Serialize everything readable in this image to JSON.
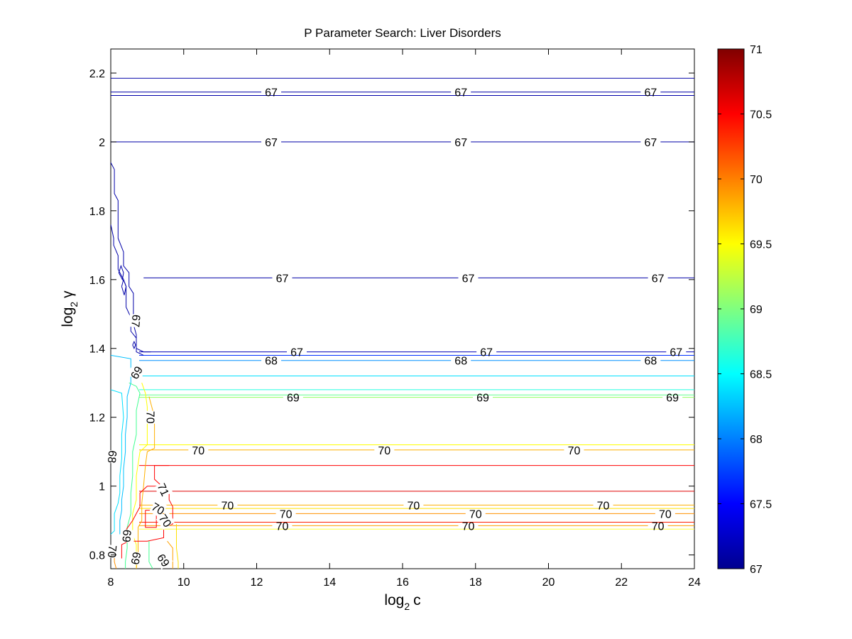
{
  "chart_data": {
    "type": "contour",
    "title": "P Parameter Search: Liver Disorders",
    "xlabel_base": "log",
    "xlabel_sub": "2",
    "xlabel_var": "c",
    "ylabel_base": "log",
    "ylabel_sub": "2",
    "ylabel_var": "γ",
    "xlim": [
      8,
      24
    ],
    "ylim": [
      0.76,
      2.27
    ],
    "xticks": [
      "8",
      "10",
      "12",
      "14",
      "16",
      "18",
      "20",
      "22",
      "24"
    ],
    "yticks": [
      "0.8",
      "1",
      "1.2",
      "1.4",
      "1.6",
      "1.8",
      "2",
      "2.2"
    ],
    "colorbar": {
      "range": [
        67,
        71
      ],
      "ticks": [
        "67",
        "67.5",
        "68",
        "68.5",
        "69",
        "69.5",
        "70",
        "70.5",
        "71"
      ]
    },
    "levels": [
      {
        "level": 67,
        "color": "#0000a8",
        "y": 2.185
      },
      {
        "level": 67,
        "color": "#0000a8",
        "y": 2.145,
        "labels": [
          {
            "x": 12.4,
            "text": "67"
          },
          {
            "x": 17.6,
            "text": "67"
          },
          {
            "x": 22.8,
            "text": "67"
          }
        ]
      },
      {
        "level": 67,
        "color": "#0000a8",
        "y": 2.135
      },
      {
        "level": 67,
        "color": "#0000a8",
        "y": 2.0,
        "labels": [
          {
            "x": 12.4,
            "text": "67"
          },
          {
            "x": 17.6,
            "text": "67"
          },
          {
            "x": 22.8,
            "text": "67"
          }
        ]
      },
      {
        "level": 67,
        "color": "#0000a8",
        "y": 1.605,
        "labels": [
          {
            "x": 12.7,
            "text": "67"
          },
          {
            "x": 17.8,
            "text": "67"
          },
          {
            "x": 23.0,
            "text": "67"
          }
        ]
      },
      {
        "level": 67,
        "color": "#0000b8",
        "y": 1.39,
        "labels": [
          {
            "x": 13.1,
            "text": "67"
          },
          {
            "x": 18.3,
            "text": "67"
          },
          {
            "x": 23.5,
            "text": "67"
          }
        ]
      },
      {
        "level": 67.5,
        "color": "#0030ff",
        "y": 1.38
      },
      {
        "level": 68,
        "color": "#0090ff",
        "y": 1.365,
        "labels": [
          {
            "x": 12.4,
            "text": "68"
          },
          {
            "x": 17.6,
            "text": "68"
          },
          {
            "x": 22.8,
            "text": "68"
          }
        ]
      },
      {
        "level": 68.5,
        "color": "#00e0ff",
        "y": 1.32
      },
      {
        "level": 68.5,
        "color": "#20ffe0",
        "y": 1.28
      },
      {
        "level": 69,
        "color": "#60ff90",
        "y": 1.265
      },
      {
        "level": 69,
        "color": "#90ff60",
        "y": 1.258,
        "labels": [
          {
            "x": 13.0,
            "text": "69"
          },
          {
            "x": 18.2,
            "text": "69"
          },
          {
            "x": 23.4,
            "text": "69"
          }
        ]
      },
      {
        "level": 69.5,
        "color": "#ffff00",
        "y": 1.12
      },
      {
        "level": 70,
        "color": "#ffb000",
        "y": 1.105,
        "labels": [
          {
            "x": 10.4,
            "text": "70"
          },
          {
            "x": 15.5,
            "text": "70"
          },
          {
            "x": 20.7,
            "text": "70"
          }
        ]
      },
      {
        "level": 70.5,
        "color": "#ff0000",
        "y": 1.06
      },
      {
        "level": 70.5,
        "color": "#e00000",
        "y": 0.985
      },
      {
        "level": 70,
        "color": "#ffb000",
        "y": 0.945,
        "labels": [
          {
            "x": 11.2,
            "text": "70"
          },
          {
            "x": 16.3,
            "text": "70"
          },
          {
            "x": 21.5,
            "text": "70"
          }
        ]
      },
      {
        "level": 69.5,
        "color": "#ffe000",
        "y": 0.935
      },
      {
        "level": 70,
        "color": "#ff9000",
        "y": 0.92,
        "labels": [
          {
            "x": 12.8,
            "text": "70"
          },
          {
            "x": 18.0,
            "text": "70"
          },
          {
            "x": 23.2,
            "text": "70"
          }
        ]
      },
      {
        "level": 70.5,
        "color": "#ff2000",
        "y": 0.895
      },
      {
        "level": 70,
        "color": "#ffa000",
        "y": 0.885,
        "labels": [
          {
            "x": 12.7,
            "text": "70"
          },
          {
            "x": 17.8,
            "text": "70"
          },
          {
            "x": 23.0,
            "text": "70"
          }
        ]
      },
      {
        "level": 69.5,
        "color": "#ffff40",
        "y": 0.875
      }
    ],
    "edge_labels": [
      {
        "x": 8.7,
        "y": 1.48,
        "text": "67",
        "rotate": 95
      },
      {
        "x": 8.7,
        "y": 1.33,
        "text": "69",
        "rotate": -60
      },
      {
        "x": 9.1,
        "y": 1.2,
        "text": "70",
        "rotate": 90
      },
      {
        "x": 8.05,
        "y": 1.085,
        "text": "68",
        "rotate": 95
      },
      {
        "x": 9.45,
        "y": 0.99,
        "text": "71",
        "rotate": 65
      },
      {
        "x": 9.3,
        "y": 0.935,
        "text": "70",
        "rotate": 30
      },
      {
        "x": 9.5,
        "y": 0.9,
        "text": "70",
        "rotate": 55
      },
      {
        "x": 8.45,
        "y": 0.855,
        "text": "69",
        "rotate": 95
      },
      {
        "x": 8.05,
        "y": 0.81,
        "text": "70",
        "rotate": 95
      },
      {
        "x": 8.7,
        "y": 0.79,
        "text": "69",
        "rotate": 100
      },
      {
        "x": 9.45,
        "y": 0.785,
        "text": "69",
        "rotate": 55
      }
    ],
    "edge_paths": [
      {
        "color": "#0000a8",
        "points": [
          [
            8.0,
            1.94
          ],
          [
            8.1,
            1.92
          ],
          [
            8.1,
            1.85
          ],
          [
            8.2,
            1.83
          ],
          [
            8.2,
            1.72
          ],
          [
            8.35,
            1.68
          ],
          [
            8.35,
            1.64
          ],
          [
            8.5,
            1.62
          ],
          [
            8.5,
            1.58
          ],
          [
            8.62,
            1.56
          ],
          [
            8.62,
            1.47
          ],
          [
            8.7,
            1.44
          ],
          [
            8.7,
            1.4
          ],
          [
            8.9,
            1.39
          ],
          [
            9.1,
            1.39
          ]
        ]
      },
      {
        "color": "#0000a8",
        "points": [
          [
            8.0,
            1.76
          ],
          [
            8.08,
            1.72
          ],
          [
            8.08,
            1.7
          ],
          [
            8.2,
            1.67
          ],
          [
            8.2,
            1.63
          ],
          [
            8.35,
            1.6
          ],
          [
            8.42,
            1.58
          ],
          [
            8.42,
            1.52
          ],
          [
            8.55,
            1.49
          ],
          [
            8.55,
            1.45
          ],
          [
            8.7,
            1.43
          ],
          [
            8.7,
            1.39
          ],
          [
            8.9,
            1.38
          ]
        ]
      },
      {
        "color": "#0000a8",
        "points": [
          [
            8.22,
            1.62
          ],
          [
            8.28,
            1.64
          ],
          [
            8.35,
            1.62
          ],
          [
            8.32,
            1.6
          ],
          [
            8.22,
            1.62
          ]
        ]
      },
      {
        "color": "#0000a8",
        "points": [
          [
            8.3,
            1.58
          ],
          [
            8.35,
            1.6
          ],
          [
            8.42,
            1.58
          ],
          [
            8.37,
            1.555
          ],
          [
            8.3,
            1.58
          ]
        ]
      },
      {
        "color": "#0000a8",
        "points": [
          [
            8.6,
            1.41
          ],
          [
            8.64,
            1.42
          ],
          [
            8.68,
            1.41
          ],
          [
            8.64,
            1.4
          ],
          [
            8.6,
            1.41
          ]
        ]
      },
      {
        "color": "#00c0ff",
        "points": [
          [
            8.0,
            1.38
          ],
          [
            8.55,
            1.37
          ],
          [
            8.55,
            1.3
          ],
          [
            8.45,
            1.26
          ],
          [
            8.45,
            1.2
          ],
          [
            8.4,
            1.15
          ],
          [
            8.4,
            1.1
          ],
          [
            8.35,
            1.05
          ],
          [
            8.35,
            1.0
          ],
          [
            8.3,
            0.96
          ],
          [
            8.3,
            0.93
          ],
          [
            8.25,
            0.9
          ],
          [
            8.25,
            0.86
          ]
        ]
      },
      {
        "color": "#00e0ff",
        "points": [
          [
            8.0,
            1.28
          ],
          [
            8.3,
            1.27
          ],
          [
            8.35,
            1.2
          ],
          [
            8.3,
            1.15
          ],
          [
            8.3,
            1.08
          ],
          [
            8.25,
            1.03
          ],
          [
            8.25,
            0.98
          ],
          [
            8.2,
            0.95
          ],
          [
            8.1,
            0.92
          ],
          [
            8.1,
            0.87
          ],
          [
            8.0,
            0.86
          ]
        ]
      },
      {
        "color": "#40ff90",
        "points": [
          [
            8.5,
            1.3
          ],
          [
            8.7,
            1.29
          ],
          [
            8.8,
            1.27
          ],
          [
            8.7,
            1.22
          ],
          [
            8.7,
            1.15
          ],
          [
            8.6,
            1.1
          ],
          [
            8.6,
            1.03
          ],
          [
            8.55,
            0.98
          ],
          [
            8.55,
            0.92
          ],
          [
            8.45,
            0.88
          ],
          [
            8.45,
            0.82
          ],
          [
            8.4,
            0.78
          ],
          [
            8.4,
            0.76
          ]
        ]
      },
      {
        "color": "#ffff00",
        "points": [
          [
            8.85,
            1.3
          ],
          [
            8.95,
            1.27
          ],
          [
            9.0,
            1.23
          ],
          [
            9.0,
            1.12
          ],
          [
            8.8,
            1.1
          ],
          [
            8.7,
            1.03
          ],
          [
            8.7,
            0.96
          ],
          [
            8.6,
            0.92
          ],
          [
            8.6,
            0.86
          ],
          [
            8.7,
            0.83
          ],
          [
            8.7,
            0.76
          ]
        ]
      },
      {
        "color": "#ffb000",
        "points": [
          [
            9.05,
            1.26
          ],
          [
            9.15,
            1.22
          ],
          [
            9.2,
            1.18
          ],
          [
            9.2,
            1.11
          ],
          [
            9.0,
            1.1
          ],
          [
            8.95,
            1.06
          ],
          [
            8.9,
            1.0
          ],
          [
            8.85,
            0.95
          ],
          [
            8.85,
            0.9
          ],
          [
            8.75,
            0.88
          ],
          [
            8.75,
            0.8
          ],
          [
            8.7,
            0.76
          ]
        ]
      },
      {
        "color": "#ff0000",
        "points": [
          [
            9.6,
            1.06
          ],
          [
            9.2,
            1.06
          ],
          [
            9.2,
            1.02
          ],
          [
            9.5,
            0.99
          ],
          [
            9.6,
            0.985
          ]
        ]
      },
      {
        "color": "#ff0000",
        "points": [
          [
            8.95,
            0.93
          ],
          [
            9.25,
            0.93
          ],
          [
            9.25,
            0.88
          ],
          [
            8.95,
            0.88
          ],
          [
            8.95,
            0.93
          ]
        ]
      },
      {
        "color": "#ff0000",
        "points": [
          [
            8.4,
            0.87
          ],
          [
            8.6,
            0.9
          ],
          [
            8.8,
            0.94
          ],
          [
            8.8,
            0.98
          ],
          [
            9.0,
            1.0
          ],
          [
            9.6,
            1.0
          ],
          [
            9.6,
            0.96
          ],
          [
            9.7,
            0.94
          ],
          [
            9.7,
            0.89
          ],
          [
            9.45,
            0.88
          ],
          [
            9.45,
            0.85
          ],
          [
            9.0,
            0.84
          ],
          [
            8.5,
            0.84
          ],
          [
            8.3,
            0.83
          ],
          [
            8.3,
            0.79
          ]
        ]
      },
      {
        "color": "#ffe000",
        "points": [
          [
            9.8,
            0.89
          ],
          [
            9.8,
            0.82
          ],
          [
            9.85,
            0.78
          ],
          [
            9.85,
            0.76
          ]
        ]
      },
      {
        "color": "#ffa000",
        "points": [
          [
            9.55,
            0.84
          ],
          [
            9.7,
            0.82
          ],
          [
            9.7,
            0.76
          ]
        ]
      },
      {
        "color": "#40ff90",
        "points": [
          [
            9.05,
            0.84
          ],
          [
            9.05,
            0.78
          ],
          [
            9.15,
            0.76
          ]
        ]
      },
      {
        "color": "#ff9000",
        "points": [
          [
            8.1,
            0.82
          ],
          [
            8.1,
            0.78
          ],
          [
            8.15,
            0.76
          ]
        ]
      }
    ]
  }
}
